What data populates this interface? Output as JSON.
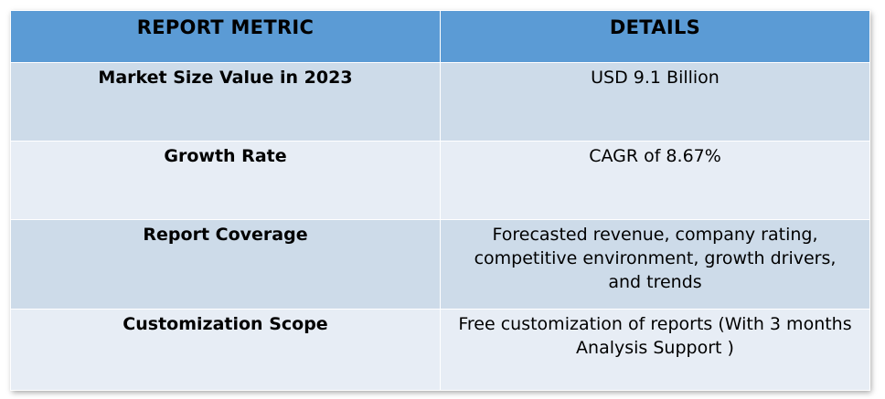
{
  "table": {
    "headers": [
      "REPORT METRIC",
      "DETAILS"
    ],
    "rows": [
      {
        "metric": "Market Size Value in 2023",
        "detail": "USD 9.1 Billion"
      },
      {
        "metric": "Growth Rate",
        "detail": "CAGR of 8.67%"
      },
      {
        "metric": "Report Coverage",
        "detail": "Forecasted revenue, company rating, competitive environment, growth drivers, and trends"
      },
      {
        "metric": "Customization Scope",
        "detail": "Free customization of reports (With 3 months Analysis Support )"
      }
    ]
  },
  "colors": {
    "header_bg": "#5b9bd5",
    "row_shade_dark": "#cddbe9",
    "row_shade_light": "#e7edf5"
  }
}
